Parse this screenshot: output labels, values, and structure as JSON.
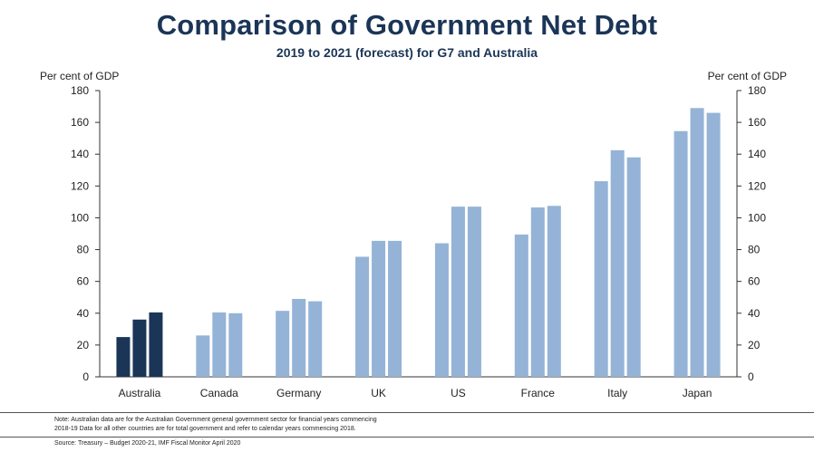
{
  "header": {
    "title": "Comparison of Government Net Debt",
    "subtitle": "2019 to 2021 (forecast) for G7 and Australia"
  },
  "axes": {
    "left_title": "Per cent of GDP",
    "right_title": "Per cent of GDP"
  },
  "footer": {
    "note_line1": "Note: Australian data are for the Australian Government general government sector for financial years commencing",
    "note_line2": "2018-19 Data for all other countries are for total government and refer to calendar years commencing 2018.",
    "source": "Source: Treasury – Budget 2020-21, IMF Fiscal Monitor April 2020"
  },
  "colors": {
    "highlight": "#1b3557",
    "bar": "#95b3d7",
    "title": "#1b3557",
    "axis": "#333333"
  },
  "chart_data": {
    "type": "bar",
    "title": "Comparison of Government Net Debt",
    "subtitle": "2019 to 2021 (forecast) for G7 and Australia",
    "xlabel": "",
    "ylabel": "Per cent of GDP",
    "ylim": [
      0,
      180
    ],
    "yticks": [
      0,
      20,
      40,
      60,
      80,
      100,
      120,
      140,
      160,
      180
    ],
    "grid": false,
    "categories": [
      "Australia",
      "Canada",
      "Germany",
      "UK",
      "US",
      "France",
      "Italy",
      "Japan"
    ],
    "values_per_category": [
      [
        25,
        36,
        40.5
      ],
      [
        26,
        40.5,
        40
      ],
      [
        41.5,
        49,
        47.5
      ],
      [
        75.5,
        85.5,
        85.5
      ],
      [
        84,
        107,
        107
      ],
      [
        89.5,
        106.5,
        107.5
      ],
      [
        123,
        142.5,
        138
      ],
      [
        154.5,
        169,
        166
      ]
    ],
    "highlight_category": "Australia"
  }
}
